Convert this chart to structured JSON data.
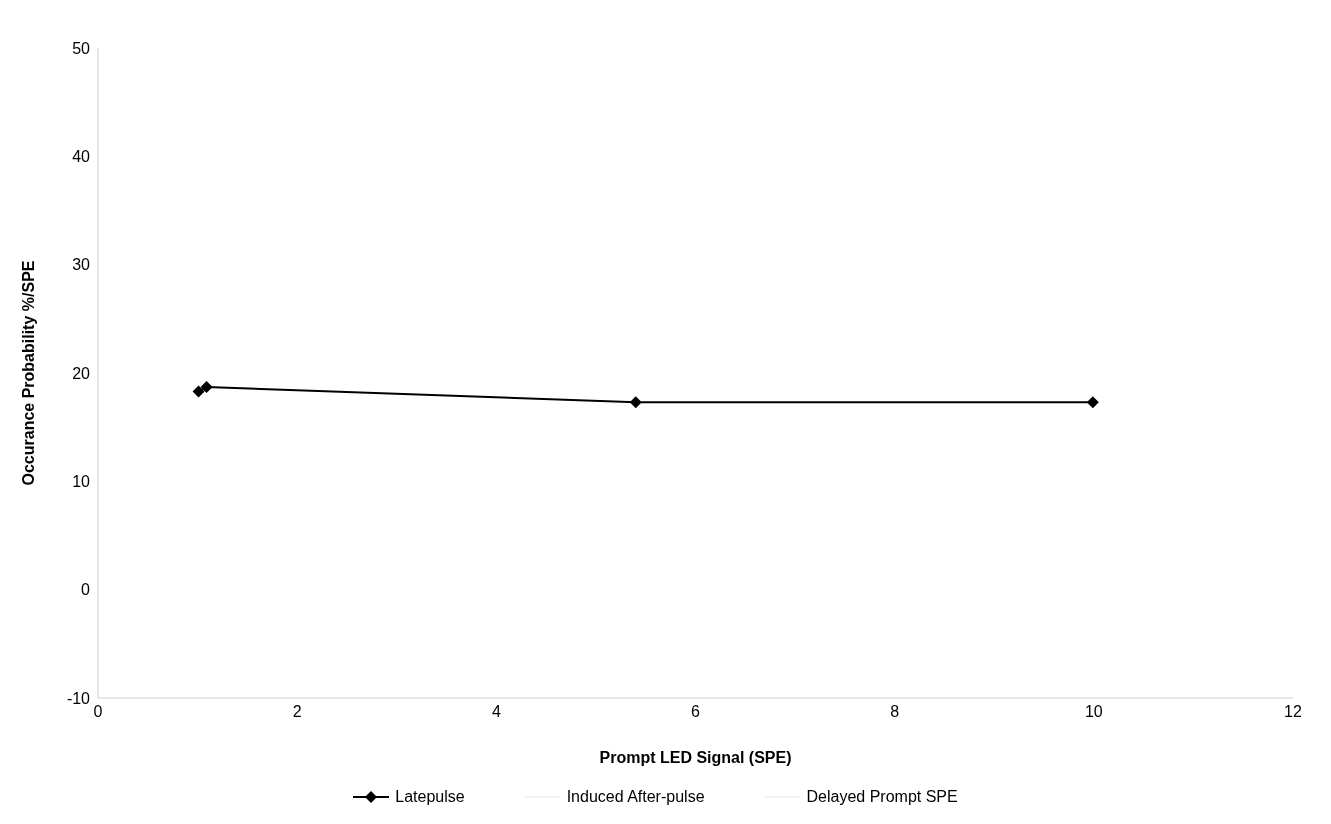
{
  "chart_data": {
    "type": "line",
    "xlabel": "Prompt LED Signal (SPE)",
    "ylabel": "Occurance Probability %/SPE",
    "x": [
      1.01,
      1.09,
      5.4,
      9.99
    ],
    "series": [
      {
        "name": "Latepulse",
        "color": "#000000",
        "values": [
          18.3,
          18.7,
          17.3,
          17.3
        ],
        "marker": "diamond"
      },
      {
        "name": "Induced After-pulse",
        "color": "#f2f2f2",
        "values": [
          null,
          null,
          null,
          null
        ],
        "marker": "none"
      },
      {
        "name": "Delayed Prompt SPE",
        "color": "#f2f2f2",
        "values": [
          null,
          null,
          null,
          null
        ],
        "marker": "none"
      }
    ],
    "xlim": [
      0,
      12
    ],
    "xticks": [
      0,
      2,
      4,
      6,
      8,
      10,
      12
    ],
    "ylim": [
      -10,
      50
    ],
    "yticks": [
      -10,
      0,
      10,
      20,
      30,
      40,
      50
    ],
    "legend": "bottom",
    "line_style": "solid"
  }
}
